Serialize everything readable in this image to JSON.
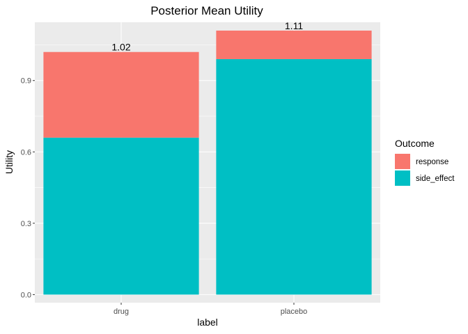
{
  "chart_data": {
    "type": "bar",
    "stacked": true,
    "title": "Posterior Mean Utility",
    "xlabel": "label",
    "ylabel": "Utility",
    "categories": [
      "drug",
      "placebo"
    ],
    "series": [
      {
        "name": "side_effect",
        "values": [
          0.66,
          0.99
        ],
        "color": "#00BFC4"
      },
      {
        "name": "response",
        "values": [
          0.36,
          0.12
        ],
        "color": "#F8766D"
      }
    ],
    "totals": [
      "1.02",
      "1.11"
    ],
    "ylim": [
      -0.034,
      1.145
    ],
    "yticks": [
      0.0,
      0.3,
      0.6,
      0.9
    ],
    "ytick_labels": [
      "0.0",
      "0.3",
      "0.6",
      "0.9"
    ],
    "grid": true,
    "legend": {
      "title": "Outcome",
      "position": "right",
      "entries": [
        {
          "label": "response",
          "color": "#F8766D"
        },
        {
          "label": "side_effect",
          "color": "#00BFC4"
        }
      ]
    },
    "panel_background": "#EBEBEB"
  }
}
